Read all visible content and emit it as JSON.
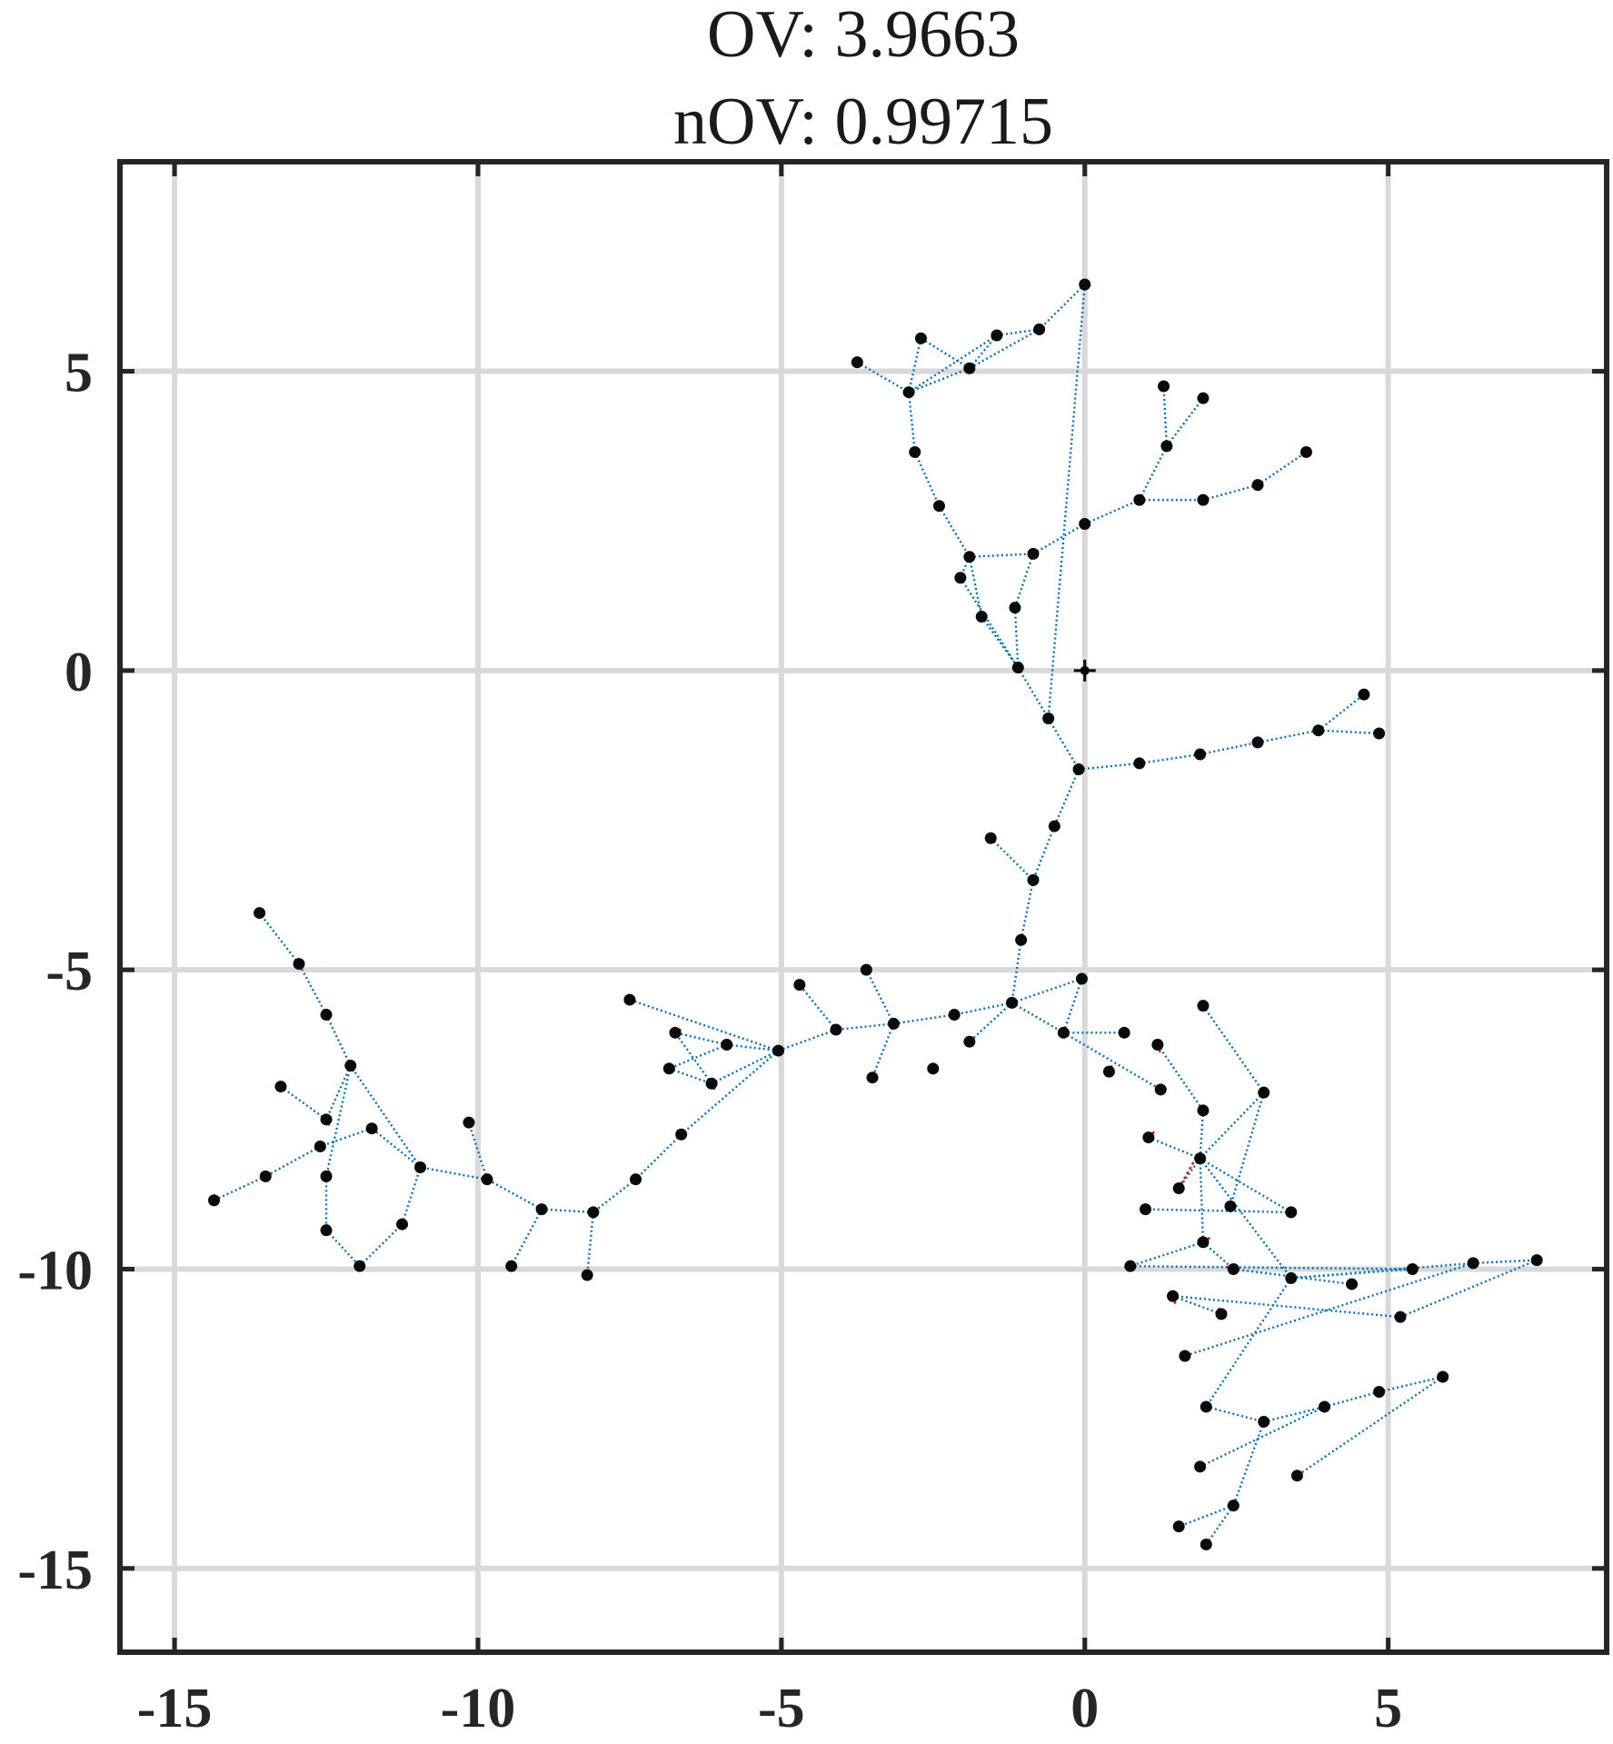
{
  "chart_data": {
    "type": "scatter",
    "title": [
      "OV: 3.9663",
      "nOV: 0.99715"
    ],
    "xlim": [
      -15.9,
      8.6
    ],
    "ylim": [
      -16.4,
      8.5
    ],
    "xticks": [
      -15,
      -10,
      -5,
      0,
      5
    ],
    "yticks": [
      5,
      0,
      -5,
      -10,
      -15
    ],
    "xtick_labels": [
      "-15",
      "-10",
      "-5",
      "0",
      "5"
    ],
    "ytick_labels": [
      "5",
      "0",
      "-5",
      "-10",
      "-15"
    ],
    "grid": true,
    "colors": {
      "edge": "#0072BD",
      "node": "#0a0a0a",
      "highlight": "#e02020",
      "grid": "#d9d9d9",
      "axes": "#262626"
    },
    "origin_marker": [
      0,
      0
    ],
    "points": [
      [
        0,
        6.45
      ],
      [
        -0.75,
        5.7
      ],
      [
        -1.45,
        5.6
      ],
      [
        -1.9,
        5.05
      ],
      [
        -2.7,
        5.55
      ],
      [
        -3.75,
        5.15
      ],
      [
        -2.9,
        4.65
      ],
      [
        1.3,
        4.75
      ],
      [
        1.95,
        4.55
      ],
      [
        1.35,
        3.75
      ],
      [
        3.65,
        3.65
      ],
      [
        2.85,
        3.1
      ],
      [
        1.95,
        2.85
      ],
      [
        0.9,
        2.85
      ],
      [
        0,
        2.45
      ],
      [
        -0.85,
        1.95
      ],
      [
        -1.9,
        1.9
      ],
      [
        -2.05,
        1.55
      ],
      [
        -1.15,
        1.05
      ],
      [
        -1.7,
        0.9
      ],
      [
        -1.1,
        0.05
      ],
      [
        -2.8,
        3.65
      ],
      [
        -2.4,
        2.75
      ],
      [
        -0.6,
        -0.8
      ],
      [
        -0.1,
        -1.65
      ],
      [
        0.9,
        -1.55
      ],
      [
        1.9,
        -1.4
      ],
      [
        2.85,
        -1.2
      ],
      [
        3.85,
        -1.0
      ],
      [
        4.6,
        -0.4
      ],
      [
        4.85,
        -1.05
      ],
      [
        -0.5,
        -2.6
      ],
      [
        -1.55,
        -2.8
      ],
      [
        -0.85,
        -3.5
      ],
      [
        -1.05,
        -4.5
      ],
      [
        -1.2,
        -5.55
      ],
      [
        -0.05,
        -5.15
      ],
      [
        -0.35,
        -6.05
      ],
      [
        0.65,
        -6.05
      ],
      [
        1.95,
        -5.6
      ],
      [
        1.2,
        -6.25
      ],
      [
        -1.9,
        -6.2
      ],
      [
        -2.15,
        -5.75
      ],
      [
        -2.5,
        -6.65
      ],
      [
        -3.15,
        -5.9
      ],
      [
        -3.6,
        -5.0
      ],
      [
        -3.5,
        -6.8
      ],
      [
        -4.1,
        -6.0
      ],
      [
        -4.7,
        -5.25
      ],
      [
        -5.05,
        -6.35
      ],
      [
        -5.9,
        -6.25
      ],
      [
        -6.75,
        -6.05
      ],
      [
        -6.85,
        -6.65
      ],
      [
        -6.15,
        -6.9
      ],
      [
        -7.5,
        -5.5
      ],
      [
        -6.65,
        -7.75
      ],
      [
        -7.4,
        -8.5
      ],
      [
        -8.1,
        -9.05
      ],
      [
        -8.2,
        -10.1
      ],
      [
        -8.95,
        -9.0
      ],
      [
        -9.45,
        -9.95
      ],
      [
        -9.85,
        -8.5
      ],
      [
        -10.15,
        -7.55
      ],
      [
        -10.95,
        -8.3
      ],
      [
        -11.75,
        -7.65
      ],
      [
        -12.1,
        -6.6
      ],
      [
        -12.5,
        -5.75
      ],
      [
        -12.95,
        -4.9
      ],
      [
        -13.6,
        -4.05
      ],
      [
        -13.25,
        -6.95
      ],
      [
        -12.5,
        -7.5
      ],
      [
        -12.6,
        -7.95
      ],
      [
        -13.5,
        -8.45
      ],
      [
        -14.35,
        -8.85
      ],
      [
        -12.5,
        -8.45
      ],
      [
        -12.5,
        -9.35
      ],
      [
        -11.95,
        -9.95
      ],
      [
        -11.25,
        -9.25
      ],
      [
        0.4,
        -6.7
      ],
      [
        1.25,
        -7.0
      ],
      [
        1.95,
        -7.35
      ],
      [
        2.95,
        -7.05
      ],
      [
        1.05,
        -7.8
      ],
      [
        1.9,
        -8.15
      ],
      [
        1.55,
        -8.65
      ],
      [
        2.4,
        -8.95
      ],
      [
        3.4,
        -9.05
      ],
      [
        1.0,
        -9.0
      ],
      [
        1.95,
        -9.55
      ],
      [
        0.75,
        -9.95
      ],
      [
        2.45,
        -10.0
      ],
      [
        3.4,
        -10.15
      ],
      [
        4.4,
        -10.25
      ],
      [
        5.4,
        -10.0
      ],
      [
        6.4,
        -9.9
      ],
      [
        7.45,
        -9.85
      ],
      [
        5.2,
        -10.8
      ],
      [
        1.45,
        -10.45
      ],
      [
        2.25,
        -10.75
      ],
      [
        1.65,
        -11.45
      ],
      [
        2.0,
        -12.3
      ],
      [
        2.95,
        -12.55
      ],
      [
        3.95,
        -12.3
      ],
      [
        4.85,
        -12.05
      ],
      [
        5.9,
        -11.8
      ],
      [
        3.5,
        -13.45
      ],
      [
        1.9,
        -13.3
      ],
      [
        2.45,
        -13.95
      ],
      [
        1.55,
        -14.3
      ],
      [
        2.0,
        -14.6
      ]
    ],
    "edges": [
      [
        0,
        1
      ],
      [
        1,
        2
      ],
      [
        1,
        3
      ],
      [
        2,
        3
      ],
      [
        3,
        4
      ],
      [
        4,
        6
      ],
      [
        5,
        6
      ],
      [
        2,
        6
      ],
      [
        3,
        6
      ],
      [
        6,
        21
      ],
      [
        21,
        22
      ],
      [
        22,
        16
      ],
      [
        16,
        15
      ],
      [
        15,
        14
      ],
      [
        14,
        13
      ],
      [
        13,
        9
      ],
      [
        9,
        7
      ],
      [
        9,
        8
      ],
      [
        13,
        12
      ],
      [
        12,
        11
      ],
      [
        11,
        10
      ],
      [
        16,
        17
      ],
      [
        16,
        19
      ],
      [
        15,
        18
      ],
      [
        18,
        20
      ],
      [
        19,
        20
      ],
      [
        17,
        20
      ],
      [
        20,
        23
      ],
      [
        0,
        23
      ],
      [
        23,
        24
      ],
      [
        24,
        25
      ],
      [
        25,
        26
      ],
      [
        26,
        27
      ],
      [
        27,
        28
      ],
      [
        28,
        29
      ],
      [
        28,
        30
      ],
      [
        24,
        31
      ],
      [
        31,
        33
      ],
      [
        32,
        33
      ],
      [
        33,
        34
      ],
      [
        34,
        35
      ],
      [
        35,
        36
      ],
      [
        35,
        37
      ],
      [
        36,
        37
      ],
      [
        37,
        38
      ],
      [
        37,
        79
      ],
      [
        35,
        41
      ],
      [
        35,
        42
      ],
      [
        42,
        44
      ],
      [
        44,
        45
      ],
      [
        44,
        46
      ],
      [
        44,
        47
      ],
      [
        47,
        48
      ],
      [
        47,
        49
      ],
      [
        49,
        50
      ],
      [
        50,
        51
      ],
      [
        50,
        52
      ],
      [
        49,
        53
      ],
      [
        53,
        51
      ],
      [
        52,
        53
      ],
      [
        49,
        54
      ],
      [
        49,
        55
      ],
      [
        55,
        56
      ],
      [
        56,
        57
      ],
      [
        57,
        58
      ],
      [
        57,
        59
      ],
      [
        59,
        60
      ],
      [
        59,
        61
      ],
      [
        61,
        62
      ],
      [
        61,
        63
      ],
      [
        63,
        64
      ],
      [
        63,
        65
      ],
      [
        65,
        66
      ],
      [
        66,
        67
      ],
      [
        67,
        68
      ],
      [
        65,
        70
      ],
      [
        70,
        69
      ],
      [
        64,
        71
      ],
      [
        71,
        72
      ],
      [
        72,
        73
      ],
      [
        65,
        74
      ],
      [
        74,
        75
      ],
      [
        75,
        76
      ],
      [
        76,
        77
      ],
      [
        77,
        63
      ],
      [
        39,
        81
      ],
      [
        81,
        83
      ],
      [
        81,
        85
      ],
      [
        83,
        84
      ],
      [
        83,
        86
      ],
      [
        86,
        87
      ],
      [
        83,
        88
      ],
      [
        88,
        89
      ],
      [
        88,
        90
      ],
      [
        83,
        91
      ],
      [
        91,
        93
      ],
      [
        91,
        94
      ],
      [
        94,
        95
      ],
      [
        95,
        96
      ],
      [
        96,
        97
      ],
      [
        97,
        98
      ],
      [
        94,
        99
      ],
      [
        91,
        100
      ],
      [
        100,
        101
      ],
      [
        101,
        102
      ],
      [
        102,
        103
      ],
      [
        103,
        104
      ],
      [
        104,
        105
      ],
      [
        102,
        106
      ],
      [
        101,
        107
      ],
      [
        107,
        108
      ],
      [
        107,
        109
      ],
      [
        108,
        110
      ],
      [
        108,
        111
      ],
      [
        40,
        80
      ],
      [
        80,
        83
      ],
      [
        82,
        83
      ],
      [
        90,
        92
      ],
      [
        89,
        93
      ]
    ],
    "highlight_segments": [
      [
        [
          1.2,
          -6.25
        ],
        [
          1.25,
          -6.4
        ]
      ],
      [
        [
          0.45,
          -6.6
        ],
        [
          0.35,
          -6.75
        ]
      ],
      [
        [
          1.25,
          -6.95
        ],
        [
          1.35,
          -7.0
        ]
      ],
      [
        [
          1.05,
          -7.8
        ],
        [
          1.15,
          -7.7
        ]
      ],
      [
        [
          1.55,
          -8.65
        ],
        [
          1.8,
          -8.2
        ]
      ],
      [
        [
          1.95,
          -9.55
        ],
        [
          2.1,
          -9.45
        ]
      ],
      [
        [
          2.45,
          -10.0
        ],
        [
          2.3,
          -9.95
        ]
      ],
      [
        [
          1.45,
          -10.45
        ],
        [
          1.5,
          -10.6
        ]
      ],
      [
        [
          2.25,
          -10.75
        ],
        [
          2.2,
          -10.65
        ]
      ],
      [
        [
          -6.75,
          -6.05
        ],
        [
          -6.65,
          -6.0
        ]
      ],
      [
        [
          -6.15,
          -6.9
        ],
        [
          -6.1,
          -7.0
        ]
      ],
      [
        [
          -12.1,
          -6.6
        ],
        [
          -12.05,
          -6.7
        ]
      ],
      [
        [
          -12.5,
          -7.5
        ],
        [
          -12.45,
          -7.6
        ]
      ],
      [
        [
          -12.5,
          -8.45
        ],
        [
          -12.45,
          -8.35
        ]
      ],
      [
        [
          -11.25,
          -9.25
        ],
        [
          -11.2,
          -9.3
        ]
      ],
      [
        [
          1.9,
          -13.3
        ],
        [
          1.95,
          -13.35
        ]
      ],
      [
        [
          2.45,
          -13.95
        ],
        [
          2.35,
          -13.95
        ]
      ],
      [
        [
          2.0,
          -14.6
        ],
        [
          1.95,
          -14.55
        ]
      ]
    ]
  }
}
